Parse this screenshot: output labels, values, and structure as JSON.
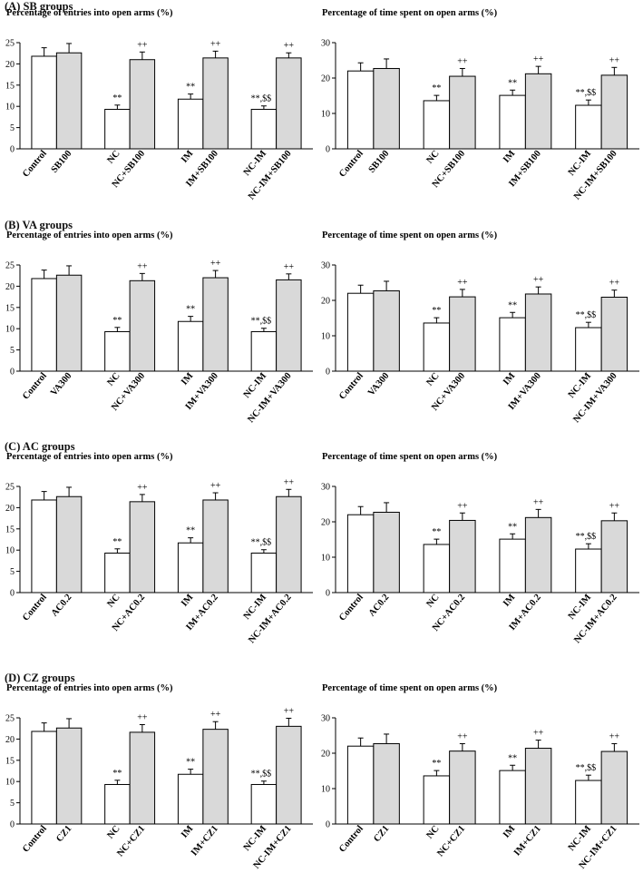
{
  "figure": {
    "sections": [
      {
        "label": "(A) SB groups",
        "drug": "SB100"
      },
      {
        "label": "(B) VA groups",
        "drug": "VA300"
      },
      {
        "label": "(C) AC groups",
        "drug": "AC0.2"
      },
      {
        "label": "(D) CZ groups",
        "drug": "CZ1"
      }
    ],
    "colors": {
      "control_bar": "#ffffff",
      "treated_bar": "#d9d9d9",
      "stroke": "#000000"
    }
  },
  "chart_data": [
    {
      "type": "bar",
      "title": "Percentage of entries into open arms (%)",
      "ylim": [
        0,
        25
      ],
      "yticks": [
        0,
        5,
        10,
        15,
        20,
        25
      ],
      "categories": [
        "Control",
        "SB100",
        "NC",
        "NC+SB100",
        "IM",
        "IM+SB100",
        "NC-IM",
        "NC-IM+SB100"
      ],
      "values": [
        21.8,
        22.6,
        9.3,
        21.0,
        11.7,
        21.4,
        9.3,
        21.4
      ],
      "errors": [
        2.0,
        2.2,
        1.0,
        1.8,
        1.2,
        1.6,
        0.8,
        1.2
      ],
      "annotations": [
        "",
        "",
        "**",
        "++",
        "**",
        "++",
        "**,$$",
        "++"
      ]
    },
    {
      "type": "bar",
      "title": "Percentage of time spent on open arms (%)",
      "ylim": [
        0,
        30
      ],
      "yticks": [
        0,
        10,
        20,
        30
      ],
      "categories": [
        "Control",
        "SB100",
        "NC",
        "NC+SB100",
        "IM",
        "IM+SB100",
        "NC-IM",
        "NC-IM+SB100"
      ],
      "values": [
        22.0,
        22.7,
        13.6,
        20.5,
        15.1,
        21.2,
        12.3,
        20.8
      ],
      "errors": [
        2.3,
        2.7,
        1.5,
        2.2,
        1.5,
        2.1,
        1.5,
        2.2
      ],
      "annotations": [
        "",
        "",
        "**",
        "++",
        "**",
        "++",
        "**,$$",
        "++"
      ]
    },
    {
      "type": "bar",
      "title": "Percentage of entries into open arms (%)",
      "ylim": [
        0,
        25
      ],
      "yticks": [
        0,
        5,
        10,
        15,
        20,
        25
      ],
      "categories": [
        "Control",
        "VA300",
        "NC",
        "NC+VA300",
        "IM",
        "IM+VA300",
        "NC-IM",
        "NC-IM+VA300"
      ],
      "values": [
        21.8,
        22.6,
        9.3,
        21.3,
        11.7,
        22.0,
        9.3,
        21.5
      ],
      "errors": [
        2.0,
        2.2,
        1.0,
        1.7,
        1.2,
        1.7,
        0.8,
        1.4
      ],
      "annotations": [
        "",
        "",
        "**",
        "++",
        "**",
        "++",
        "**,$$",
        "++"
      ]
    },
    {
      "type": "bar",
      "title": "Percentage of time spent on open arms (%)",
      "ylim": [
        0,
        30
      ],
      "yticks": [
        0,
        10,
        20,
        30
      ],
      "categories": [
        "Control",
        "VA300",
        "NC",
        "NC+VA300",
        "IM",
        "IM+VA300",
        "NC-IM",
        "NC-IM+VA300"
      ],
      "values": [
        22.0,
        22.7,
        13.6,
        21.0,
        15.1,
        21.8,
        12.3,
        20.9
      ],
      "errors": [
        2.3,
        2.7,
        1.5,
        2.1,
        1.5,
        2.0,
        1.5,
        2.0
      ],
      "annotations": [
        "",
        "",
        "**",
        "++",
        "**",
        "++",
        "**,$$",
        "++"
      ]
    },
    {
      "type": "bar",
      "title": "Percentage of entries into open arms (%)",
      "ylim": [
        0,
        25
      ],
      "yticks": [
        0,
        5,
        10,
        15,
        20,
        25
      ],
      "categories": [
        "Control",
        "AC0.2",
        "NC",
        "NC+AC0.2",
        "IM",
        "IM+AC0.2",
        "NC-IM",
        "NC-IM+AC0.2"
      ],
      "values": [
        21.8,
        22.6,
        9.3,
        21.4,
        11.7,
        21.8,
        9.3,
        22.6
      ],
      "errors": [
        2.0,
        2.2,
        1.0,
        1.7,
        1.2,
        1.7,
        0.8,
        1.7
      ],
      "annotations": [
        "",
        "",
        "**",
        "++",
        "**",
        "++",
        "**,$$",
        "++"
      ]
    },
    {
      "type": "bar",
      "title": "Percentage of time spent on open arms (%)",
      "ylim": [
        0,
        30
      ],
      "yticks": [
        0,
        10,
        20,
        30
      ],
      "categories": [
        "Control",
        "AC0.2",
        "NC",
        "NC+AC0.2",
        "IM",
        "IM+AC0.2",
        "NC-IM",
        "NC-IM+AC0.2"
      ],
      "values": [
        22.0,
        22.7,
        13.6,
        20.4,
        15.1,
        21.2,
        12.3,
        20.3
      ],
      "errors": [
        2.3,
        2.7,
        1.5,
        2.1,
        1.5,
        2.3,
        1.5,
        2.2
      ],
      "annotations": [
        "",
        "",
        "**",
        "++",
        "**",
        "++",
        "**,$$",
        "++"
      ]
    },
    {
      "type": "bar",
      "title": "Percentage of entries into open arms (%)",
      "ylim": [
        0,
        25
      ],
      "yticks": [
        0,
        5,
        10,
        15,
        20,
        25
      ],
      "categories": [
        "Control",
        "CZ1",
        "NC",
        "NC+CZ1",
        "IM",
        "IM+CZ1",
        "NC-IM",
        "NC-IM+CZ1"
      ],
      "values": [
        21.8,
        22.6,
        9.3,
        21.6,
        11.7,
        22.3,
        9.3,
        23.0
      ],
      "errors": [
        2.0,
        2.2,
        1.0,
        1.8,
        1.2,
        1.8,
        0.8,
        1.9
      ],
      "annotations": [
        "",
        "",
        "**",
        "++",
        "**",
        "++",
        "**,$$",
        "++"
      ]
    },
    {
      "type": "bar",
      "title": "Percentage of time spent on open arms (%)",
      "ylim": [
        0,
        30
      ],
      "yticks": [
        0,
        10,
        20,
        30
      ],
      "categories": [
        "Control",
        "CZ1",
        "NC",
        "NC+CZ1",
        "IM",
        "IM+CZ1",
        "NC-IM",
        "NC-IM+CZ1"
      ],
      "values": [
        22.0,
        22.7,
        13.6,
        20.6,
        15.1,
        21.4,
        12.3,
        20.5
      ],
      "errors": [
        2.3,
        2.7,
        1.5,
        2.1,
        1.5,
        2.3,
        1.5,
        2.2
      ],
      "annotations": [
        "",
        "",
        "**",
        "++",
        "**",
        "++",
        "**,$$",
        "++"
      ]
    }
  ]
}
